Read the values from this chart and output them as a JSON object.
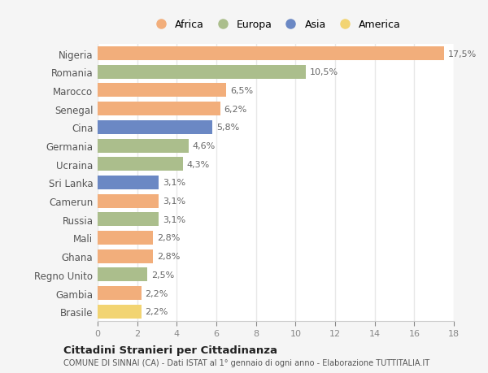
{
  "countries": [
    "Nigeria",
    "Romania",
    "Marocco",
    "Senegal",
    "Cina",
    "Germania",
    "Ucraina",
    "Sri Lanka",
    "Camerun",
    "Russia",
    "Mali",
    "Ghana",
    "Regno Unito",
    "Gambia",
    "Brasile"
  ],
  "values": [
    17.5,
    10.5,
    6.5,
    6.2,
    5.8,
    4.6,
    4.3,
    3.1,
    3.1,
    3.1,
    2.8,
    2.8,
    2.5,
    2.2,
    2.2
  ],
  "labels": [
    "17,5%",
    "10,5%",
    "6,5%",
    "6,2%",
    "5,8%",
    "4,6%",
    "4,3%",
    "3,1%",
    "3,1%",
    "3,1%",
    "2,8%",
    "2,8%",
    "2,5%",
    "2,2%",
    "2,2%"
  ],
  "continents": [
    "Africa",
    "Europa",
    "Africa",
    "Africa",
    "Asia",
    "Europa",
    "Europa",
    "Asia",
    "Africa",
    "Europa",
    "Africa",
    "Africa",
    "Europa",
    "Africa",
    "America"
  ],
  "colors": {
    "Africa": "#F2AE7B",
    "Europa": "#ABBE8C",
    "Asia": "#6B88C4",
    "America": "#F2D472"
  },
  "xlim": [
    0,
    18
  ],
  "xticks": [
    0,
    2,
    4,
    6,
    8,
    10,
    12,
    14,
    16,
    18
  ],
  "title": "Cittadini Stranieri per Cittadinanza",
  "subtitle": "COMUNE DI SINNAI (CA) - Dati ISTAT al 1° gennaio di ogni anno - Elaborazione TUTTITALIA.IT",
  "background_color": "#f5f5f5",
  "plot_bg_color": "#ffffff",
  "grid_color": "#e8e8e8",
  "bar_height": 0.75,
  "legend_order": [
    "Africa",
    "Europa",
    "Asia",
    "America"
  ]
}
